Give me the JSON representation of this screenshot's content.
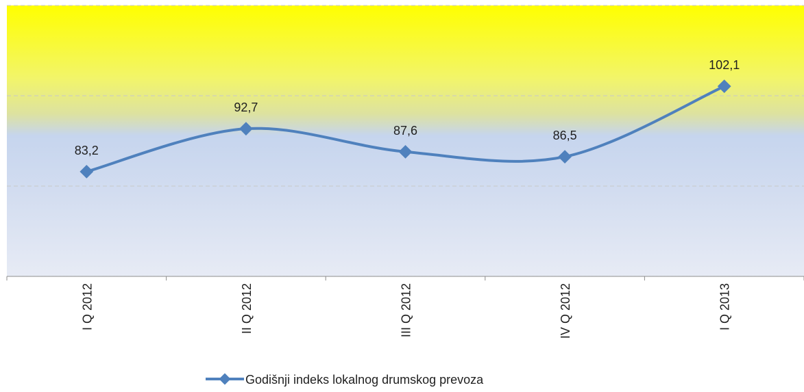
{
  "chart_data": {
    "type": "line",
    "categories": [
      "I Q 2012",
      "II Q 2012",
      "III Q 2012",
      "IV Q 2012",
      "I Q 2013"
    ],
    "series": [
      {
        "name": "Godišnji indeks lokalnog drumskog prevoza",
        "values": [
          83.2,
          92.7,
          87.6,
          86.5,
          102.1
        ],
        "labels": [
          "83,2",
          "92,7",
          "87,6",
          "86,5",
          "102,1"
        ]
      }
    ],
    "ylim": [
      60,
      120
    ],
    "grid": true,
    "smooth": true,
    "marker": "diamond",
    "legend_position": "bottom",
    "colors": {
      "line": "#4f81bd",
      "grid": "#c8c8c8",
      "axis": "#8c8c8c",
      "band_top": "#ffff00",
      "band_mid": "#c6d5ee",
      "band_bottom": "#e6ebf5"
    }
  }
}
